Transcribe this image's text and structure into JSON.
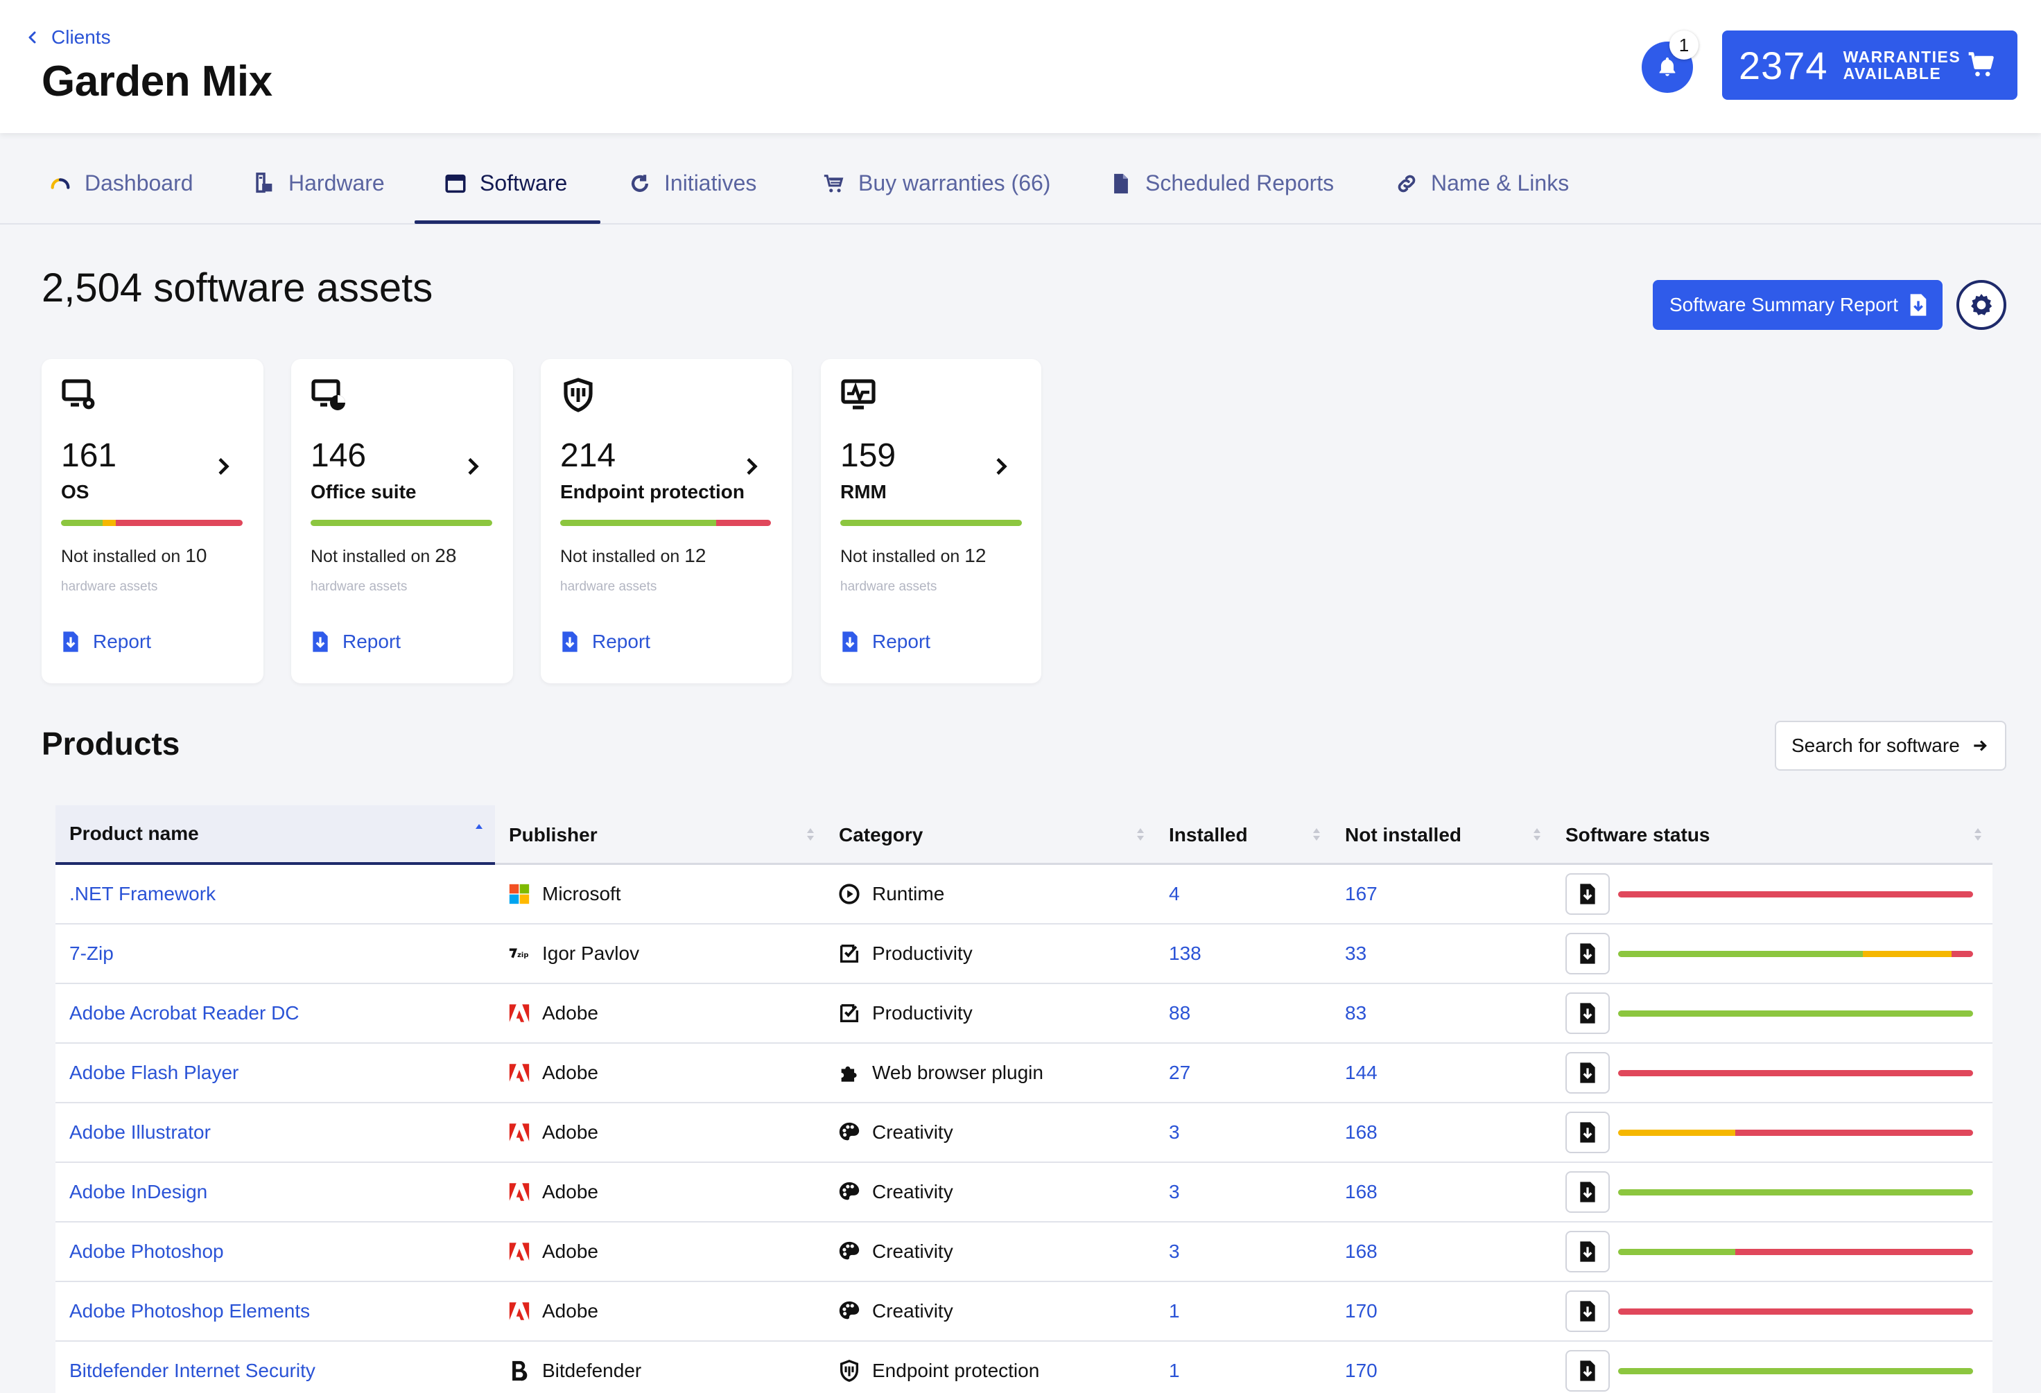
{
  "header": {
    "back_label": "Clients",
    "title": "Garden Mix",
    "notifications": "1",
    "warranty_count": "2374",
    "warranty_label_1": "WARRANTIES",
    "warranty_label_2": "AVAILABLE"
  },
  "tabs": [
    {
      "label": "Dashboard",
      "icon": "gauge-icon"
    },
    {
      "label": "Hardware",
      "icon": "hardware-icon"
    },
    {
      "label": "Software",
      "icon": "window-icon",
      "active": true
    },
    {
      "label": "Initiatives",
      "icon": "cycle-icon"
    },
    {
      "label": "Buy warranties (66)",
      "icon": "cart-icon"
    },
    {
      "label": "Scheduled Reports",
      "icon": "document-icon"
    },
    {
      "label": "Name & Links",
      "icon": "link-icon"
    }
  ],
  "main": {
    "assets_title": "2,504 software assets",
    "summary_report_label": "Software Summary Report",
    "products_title": "Products",
    "search_label": "Search for software"
  },
  "cards": [
    {
      "value": "161",
      "label": "OS",
      "not_installed_prefix": "Not installed on",
      "not_installed_count": "10",
      "sub": "hardware assets",
      "report": "Report",
      "icon": "monitor-gear-icon",
      "status": [
        {
          "color": "#8cc63f",
          "fraction": 0.23
        },
        {
          "color": "#f5b700",
          "fraction": 0.07
        },
        {
          "color": "#e0475b",
          "fraction": 0.7
        }
      ]
    },
    {
      "value": "146",
      "label": "Office suite",
      "not_installed_prefix": "Not installed on",
      "not_installed_count": "28",
      "sub": "hardware assets",
      "report": "Report",
      "icon": "monitor-chart-icon",
      "status": [
        {
          "color": "#8cc63f",
          "fraction": 1.0
        }
      ]
    },
    {
      "value": "214",
      "label": "Endpoint protection",
      "not_installed_prefix": "Not installed on",
      "not_installed_count": "12",
      "sub": "hardware assets",
      "report": "Report",
      "icon": "shield-icon",
      "status": [
        {
          "color": "#8cc63f",
          "fraction": 0.74
        },
        {
          "color": "#e0475b",
          "fraction": 0.26
        }
      ]
    },
    {
      "value": "159",
      "label": "RMM",
      "not_installed_prefix": "Not installed on",
      "not_installed_count": "12",
      "sub": "hardware assets",
      "report": "Report",
      "icon": "monitor-pulse-icon",
      "status": [
        {
          "color": "#8cc63f",
          "fraction": 1.0
        }
      ]
    }
  ],
  "table": {
    "columns": [
      "Product name",
      "Publisher",
      "Category",
      "Installed",
      "Not installed",
      "Software status"
    ],
    "rows": [
      {
        "name": ".NET Framework",
        "publisher": "Microsoft",
        "publisher_icon": "microsoft-logo-icon",
        "category": "Runtime",
        "category_icon": "runtime-icon",
        "installed": "4",
        "not_installed": "167",
        "status": [
          {
            "color": "#e0475b",
            "fraction": 1.0
          }
        ]
      },
      {
        "name": "7-Zip",
        "publisher": "Igor Pavlov",
        "publisher_icon": "7zip-logo-icon",
        "category": "Productivity",
        "category_icon": "productivity-icon",
        "installed": "138",
        "not_installed": "33",
        "status": [
          {
            "color": "#8cc63f",
            "fraction": 0.69
          },
          {
            "color": "#f5b700",
            "fraction": 0.25
          },
          {
            "color": "#e0475b",
            "fraction": 0.06
          }
        ]
      },
      {
        "name": "Adobe Acrobat Reader DC",
        "publisher": "Adobe",
        "publisher_icon": "adobe-logo-icon",
        "category": "Productivity",
        "category_icon": "productivity-icon",
        "installed": "88",
        "not_installed": "83",
        "status": [
          {
            "color": "#8cc63f",
            "fraction": 1.0
          }
        ]
      },
      {
        "name": "Adobe Flash Player",
        "publisher": "Adobe",
        "publisher_icon": "adobe-logo-icon",
        "category": "Web browser plugin",
        "category_icon": "puzzle-icon",
        "installed": "27",
        "not_installed": "144",
        "status": [
          {
            "color": "#e0475b",
            "fraction": 1.0
          }
        ]
      },
      {
        "name": "Adobe Illustrator",
        "publisher": "Adobe",
        "publisher_icon": "adobe-logo-icon",
        "category": "Creativity",
        "category_icon": "palette-icon",
        "installed": "3",
        "not_installed": "168",
        "status": [
          {
            "color": "#f5b700",
            "fraction": 0.33
          },
          {
            "color": "#e0475b",
            "fraction": 0.67
          }
        ]
      },
      {
        "name": "Adobe InDesign",
        "publisher": "Adobe",
        "publisher_icon": "adobe-logo-icon",
        "category": "Creativity",
        "category_icon": "palette-icon",
        "installed": "3",
        "not_installed": "168",
        "status": [
          {
            "color": "#8cc63f",
            "fraction": 1.0
          }
        ]
      },
      {
        "name": "Adobe Photoshop",
        "publisher": "Adobe",
        "publisher_icon": "adobe-logo-icon",
        "category": "Creativity",
        "category_icon": "palette-icon",
        "installed": "3",
        "not_installed": "168",
        "status": [
          {
            "color": "#8cc63f",
            "fraction": 0.33
          },
          {
            "color": "#e0475b",
            "fraction": 0.67
          }
        ]
      },
      {
        "name": "Adobe Photoshop Elements",
        "publisher": "Adobe",
        "publisher_icon": "adobe-logo-icon",
        "category": "Creativity",
        "category_icon": "palette-icon",
        "installed": "1",
        "not_installed": "170",
        "status": [
          {
            "color": "#e0475b",
            "fraction": 1.0
          }
        ]
      },
      {
        "name": "Bitdefender Internet Security",
        "publisher": "Bitdefender",
        "publisher_icon": "bitdefender-logo-icon",
        "category": "Endpoint protection",
        "category_icon": "shield-icon",
        "installed": "1",
        "not_installed": "170",
        "status": [
          {
            "color": "#8cc63f",
            "fraction": 1.0
          }
        ]
      }
    ]
  },
  "colors": {
    "accent": "#2f5bea",
    "nav": "#1e2a6b",
    "green": "#8cc63f",
    "amber": "#f5b700",
    "red": "#e0475b"
  }
}
